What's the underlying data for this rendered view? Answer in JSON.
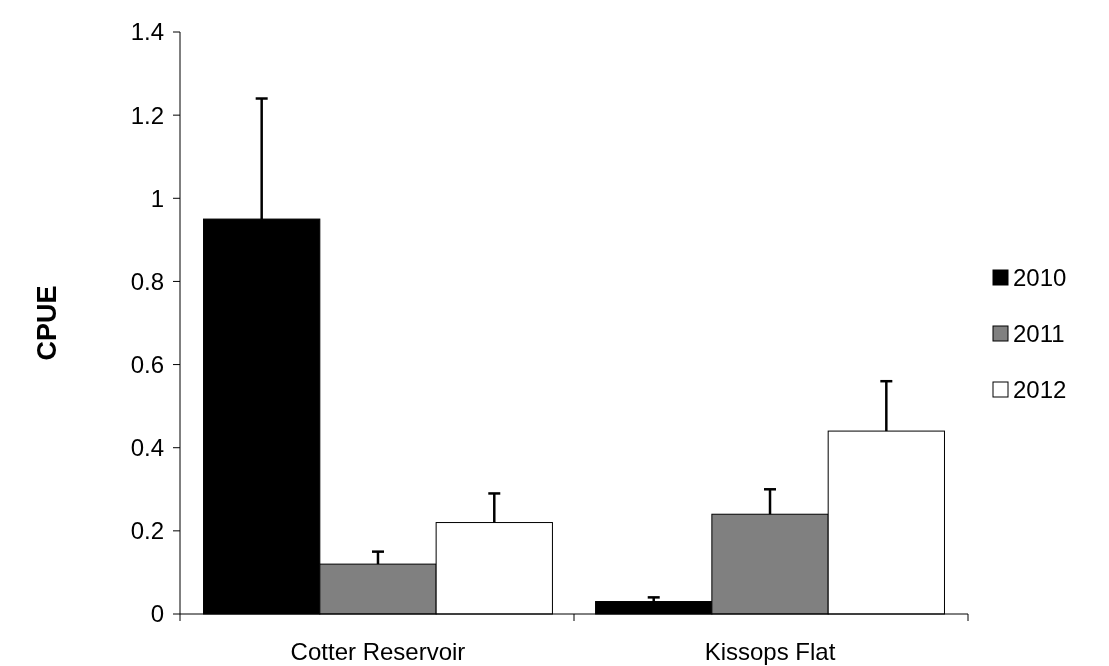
{
  "chart_data": {
    "type": "bar",
    "ylabel": "CPUE",
    "categories": [
      "Cotter Reservoir",
      "Kissops Flat"
    ],
    "series": [
      {
        "name": "2010",
        "color": "#000000",
        "values": [
          0.95,
          0.03
        ],
        "errors": [
          [
            0.95,
            1.24
          ],
          [
            0.03,
            0.04
          ]
        ]
      },
      {
        "name": "2011",
        "color": "#808080",
        "values": [
          0.12,
          0.24
        ],
        "errors": [
          [
            0.12,
            0.15
          ],
          [
            0.24,
            0.3
          ]
        ]
      },
      {
        "name": "2012",
        "color": "#ffffff",
        "values": [
          0.22,
          0.44
        ],
        "errors": [
          [
            0.22,
            0.29
          ],
          [
            0.44,
            0.56
          ]
        ]
      }
    ],
    "ylim": [
      0,
      1.4
    ],
    "yticks": [
      0,
      0.2,
      0.4,
      0.6,
      0.8,
      1,
      1.2,
      1.4
    ],
    "legend": "right",
    "grid": false
  }
}
